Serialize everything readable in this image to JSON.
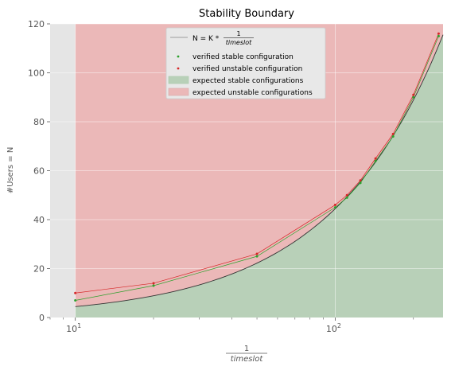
{
  "chart_data": {
    "type": "area",
    "title": "Stability Boundary",
    "ylabel": "#Users = N",
    "xlabel": {
      "numerator": "1",
      "denominator": "timeslot"
    },
    "xscale": "log",
    "xlim": [
      8,
      260
    ],
    "ylim": [
      0,
      120
    ],
    "grid": true,
    "legend_placement": "top-center",
    "x_ticks": [
      {
        "value": 10,
        "base": "10",
        "exp": "1"
      },
      {
        "value": 100,
        "base": "10",
        "exp": "2"
      }
    ],
    "y_ticks": [
      0,
      20,
      40,
      60,
      80,
      100,
      120
    ],
    "boundary": {
      "legend_prefix": "N = K * ",
      "legend_frac_num": "1",
      "legend_frac_den": "timeslot",
      "K": 0.4444,
      "color": "#333333"
    },
    "verified_stable": {
      "name": "verified stable configuration",
      "color": "#2ca02c",
      "points": [
        {
          "x": 10,
          "y": 7
        },
        {
          "x": 20,
          "y": 13
        },
        {
          "x": 50,
          "y": 25
        },
        {
          "x": 100,
          "y": 45
        },
        {
          "x": 111,
          "y": 49
        },
        {
          "x": 125,
          "y": 55
        },
        {
          "x": 143,
          "y": 64
        },
        {
          "x": 167,
          "y": 74
        },
        {
          "x": 200,
          "y": 90
        },
        {
          "x": 250,
          "y": 115
        }
      ]
    },
    "verified_unstable": {
      "name": "verified unstable configuration",
      "color": "#d62728",
      "points": [
        {
          "x": 10,
          "y": 10
        },
        {
          "x": 20,
          "y": 14
        },
        {
          "x": 50,
          "y": 26
        },
        {
          "x": 100,
          "y": 46
        },
        {
          "x": 111,
          "y": 50
        },
        {
          "x": 125,
          "y": 56
        },
        {
          "x": 143,
          "y": 65
        },
        {
          "x": 167,
          "y": 75
        },
        {
          "x": 200,
          "y": 91
        },
        {
          "x": 250,
          "y": 116
        }
      ]
    },
    "expected_stable": {
      "name": "expected stable configurations",
      "color": "#b8d0b8"
    },
    "expected_unstable": {
      "name": "expected unstable configurations",
      "color": "#ebb8b8"
    }
  }
}
